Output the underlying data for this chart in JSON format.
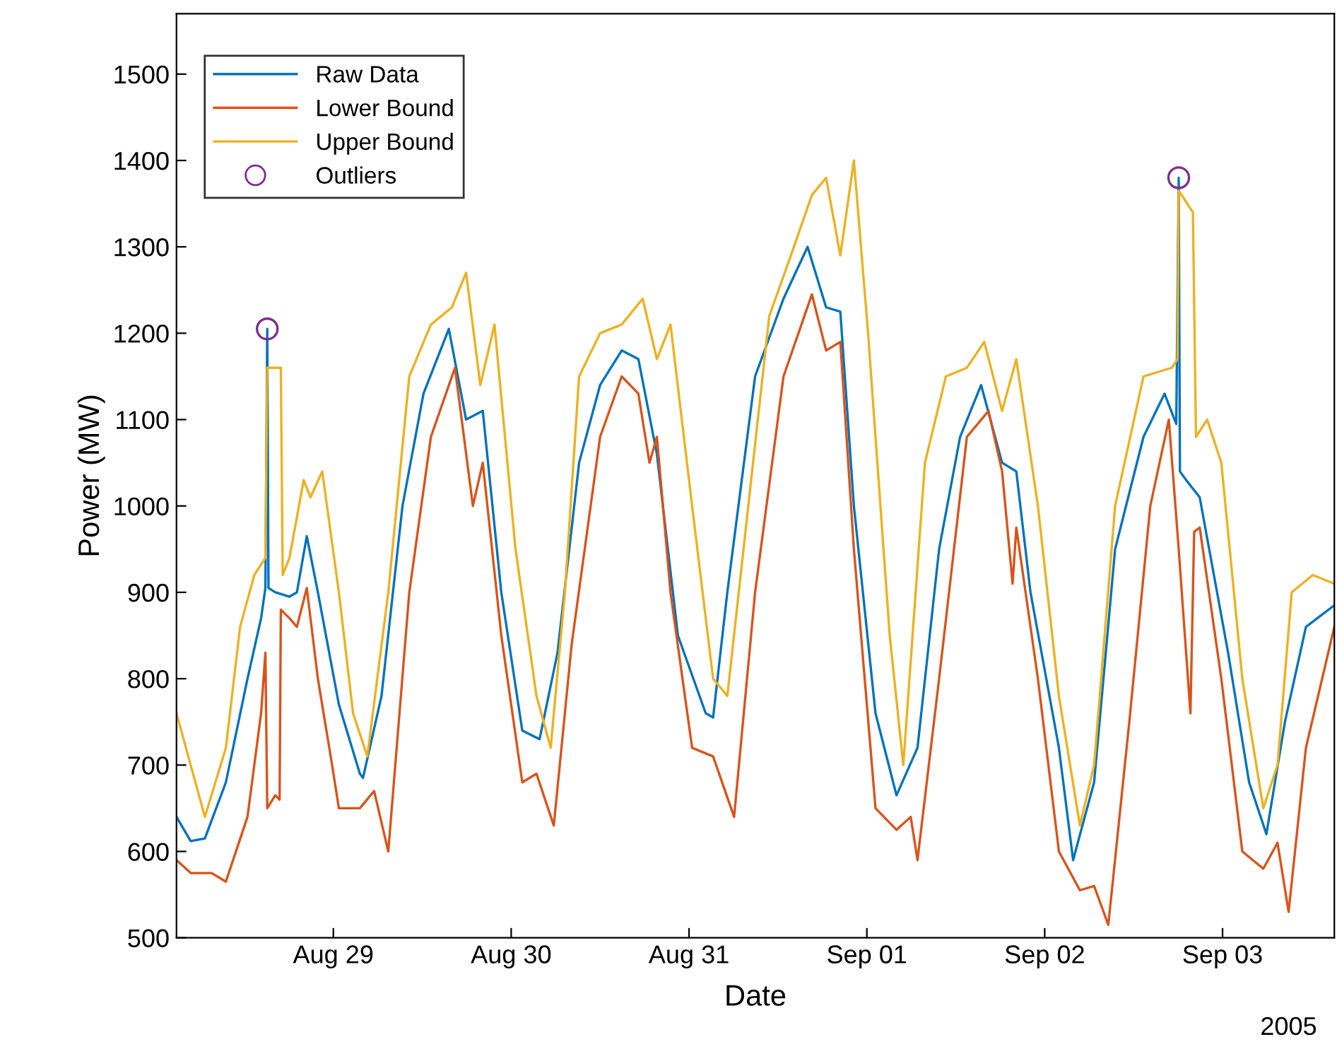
{
  "chart_data": {
    "type": "line",
    "xlabel": "Date",
    "ylabel": "Power (MW)",
    "annotations": [
      "2005"
    ],
    "xlim": [
      "2005-08-28T02:50",
      "2005-09-03T15:05"
    ],
    "xticks": [
      {
        "value": "2005-08-29",
        "label": "Aug 29"
      },
      {
        "value": "2005-08-30",
        "label": "Aug 30"
      },
      {
        "value": "2005-08-31",
        "label": "Aug 31"
      },
      {
        "value": "2005-09-01",
        "label": "Sep 01"
      },
      {
        "value": "2005-09-02",
        "label": "Sep 02"
      },
      {
        "value": "2005-09-03",
        "label": "Sep 03"
      }
    ],
    "ylim": [
      500,
      1570
    ],
    "yticks": [
      500,
      600,
      700,
      800,
      900,
      1000,
      1100,
      1200,
      1300,
      1400,
      1500
    ],
    "grid": false,
    "legend": "top left",
    "series": [
      {
        "name": "Raw Data",
        "color": "#0072bd",
        "x": [
          "2005-08-28T02:50",
          "2005-08-28T04:45",
          "2005-08-28T06:40",
          "2005-08-28T09:30",
          "2005-08-28T12:25",
          "2005-08-28T14:15",
          "2005-08-28T14:50",
          "2005-08-28T15:05",
          "2005-08-28T15:15",
          "2005-08-28T16:10",
          "2005-08-28T18:05",
          "2005-08-28T19:05",
          "2005-08-28T20:25",
          "2005-08-28T21:55",
          "2005-08-29T00:45",
          "2005-08-29T03:35",
          "2005-08-29T04:00",
          "2005-08-29T06:30",
          "2005-08-29T09:20",
          "2005-08-29T12:10",
          "2005-08-29T15:35",
          "2005-08-29T17:55",
          "2005-08-29T20:10",
          "2005-08-29T22:40",
          "2005-08-30T01:30",
          "2005-08-30T03:50",
          "2005-08-30T06:15",
          "2005-08-30T09:10",
          "2005-08-30T12:00",
          "2005-08-30T14:55",
          "2005-08-30T17:10",
          "2005-08-30T19:40",
          "2005-08-30T22:30",
          "2005-08-31T02:15",
          "2005-08-31T03:15",
          "2005-08-31T05:10",
          "2005-08-31T08:55",
          "2005-08-31T12:45",
          "2005-08-31T16:00",
          "2005-08-31T18:30",
          "2005-08-31T20:25",
          "2005-08-31T22:15",
          "2005-09-01T01:10",
          "2005-09-01T04:00",
          "2005-09-01T06:50",
          "2005-09-01T09:45",
          "2005-09-01T12:35",
          "2005-09-01T15:25",
          "2005-09-01T18:15",
          "2005-09-01T20:10",
          "2005-09-01T22:05",
          "2005-09-02T01:55",
          "2005-09-02T03:50",
          "2005-09-02T06:40",
          "2005-09-02T09:30",
          "2005-09-02T13:20",
          "2005-09-02T16:10",
          "2005-09-02T17:45",
          "2005-09-02T18:05",
          "2005-09-02T18:15",
          "2005-09-02T19:05",
          "2005-09-02T20:55",
          "2005-09-03T00:45",
          "2005-09-03T03:35",
          "2005-09-03T05:55",
          "2005-09-03T08:25",
          "2005-09-03T11:15",
          "2005-09-03T15:05"
        ],
        "values": [
          640,
          612,
          615,
          680,
          800,
          870,
          905,
          1205,
          905,
          900,
          895,
          900,
          965,
          900,
          770,
          690,
          685,
          780,
          1000,
          1130,
          1205,
          1100,
          1110,
          900,
          740,
          730,
          830,
          1050,
          1140,
          1180,
          1170,
          1060,
          850,
          760,
          755,
          900,
          1150,
          1240,
          1300,
          1230,
          1225,
          1000,
          760,
          665,
          720,
          950,
          1080,
          1140,
          1050,
          1040,
          900,
          720,
          590,
          680,
          950,
          1080,
          1130,
          1095,
          1380,
          1040,
          1030,
          1010,
          830,
          680,
          620,
          750,
          860,
          885
        ]
      },
      {
        "name": "Lower Bound",
        "color": "#d95319",
        "x": [
          "2005-08-28T02:50",
          "2005-08-28T04:45",
          "2005-08-28T07:35",
          "2005-08-28T09:30",
          "2005-08-28T12:25",
          "2005-08-28T14:15",
          "2005-08-28T14:50",
          "2005-08-28T15:05",
          "2005-08-28T16:10",
          "2005-08-28T16:45",
          "2005-08-28T16:55",
          "2005-08-28T18:05",
          "2005-08-28T19:05",
          "2005-08-28T20:25",
          "2005-08-28T21:55",
          "2005-08-28T23:50",
          "2005-08-29T00:45",
          "2005-08-29T03:35",
          "2005-08-29T05:30",
          "2005-08-29T07:25",
          "2005-08-29T10:15",
          "2005-08-29T13:10",
          "2005-08-29T16:25",
          "2005-08-29T18:50",
          "2005-08-29T20:10",
          "2005-08-29T22:40",
          "2005-08-30T01:30",
          "2005-08-30T03:25",
          "2005-08-30T05:45",
          "2005-08-30T08:10",
          "2005-08-30T12:00",
          "2005-08-30T14:55",
          "2005-08-30T17:10",
          "2005-08-30T18:40",
          "2005-08-30T19:40",
          "2005-08-30T21:30",
          "2005-08-31T00:25",
          "2005-08-31T03:15",
          "2005-08-31T06:05",
          "2005-08-31T08:55",
          "2005-08-31T12:45",
          "2005-08-31T16:35",
          "2005-08-31T18:30",
          "2005-08-31T20:25",
          "2005-08-31T22:15",
          "2005-09-01T01:10",
          "2005-09-01T04:00",
          "2005-09-01T05:55",
          "2005-09-01T06:50",
          "2005-09-01T09:45",
          "2005-09-01T13:30",
          "2005-09-01T16:25",
          "2005-09-01T18:15",
          "2005-09-01T19:40",
          "2005-09-01T20:10",
          "2005-09-01T23:05",
          "2005-09-02T01:55",
          "2005-09-02T04:45",
          "2005-09-02T06:40",
          "2005-09-02T08:35",
          "2005-09-02T11:25",
          "2005-09-02T14:15",
          "2005-09-02T16:45",
          "2005-09-02T18:05",
          "2005-09-02T19:40",
          "2005-09-02T20:10",
          "2005-09-02T20:55",
          "2005-09-02T23:50",
          "2005-09-03T02:40",
          "2005-09-03T05:30",
          "2005-09-03T07:25",
          "2005-09-03T08:55",
          "2005-09-03T11:15",
          "2005-09-03T15:05"
        ],
        "values": [
          590,
          575,
          575,
          565,
          640,
          760,
          830,
          650,
          665,
          660,
          880,
          870,
          860,
          905,
          800,
          700,
          650,
          650,
          670,
          600,
          900,
          1080,
          1160,
          1000,
          1050,
          850,
          680,
          690,
          630,
          840,
          1080,
          1150,
          1130,
          1050,
          1080,
          900,
          720,
          710,
          640,
          900,
          1150,
          1245,
          1180,
          1190,
          950,
          650,
          625,
          640,
          590,
          800,
          1080,
          1110,
          1040,
          910,
          975,
          800,
          600,
          555,
          560,
          515,
          750,
          1000,
          1100,
          950,
          760,
          970,
          975,
          800,
          600,
          580,
          610,
          530,
          720,
          860
        ]
      },
      {
        "name": "Upper Bound",
        "color": "#edb120",
        "x": [
          "2005-08-28T02:50",
          "2005-08-28T04:45",
          "2005-08-28T06:40",
          "2005-08-28T09:30",
          "2005-08-28T11:25",
          "2005-08-28T13:20",
          "2005-08-28T14:50",
          "2005-08-28T15:05",
          "2005-08-28T16:55",
          "2005-08-28T17:10",
          "2005-08-28T18:05",
          "2005-08-28T20:00",
          "2005-08-28T20:55",
          "2005-08-28T22:30",
          "2005-08-29T00:45",
          "2005-08-29T02:40",
          "2005-08-29T04:35",
          "2005-08-29T07:25",
          "2005-08-29T10:15",
          "2005-08-29T13:10",
          "2005-08-29T16:00",
          "2005-08-29T17:55",
          "2005-08-29T19:50",
          "2005-08-29T21:45",
          "2005-08-30T00:35",
          "2005-08-30T03:25",
          "2005-08-30T05:20",
          "2005-08-30T07:15",
          "2005-08-30T09:10",
          "2005-08-30T12:00",
          "2005-08-30T14:55",
          "2005-08-30T17:45",
          "2005-08-30T19:40",
          "2005-08-30T21:30",
          "2005-08-31T00:25",
          "2005-08-31T03:15",
          "2005-08-31T05:10",
          "2005-08-31T08:00",
          "2005-08-31T10:50",
          "2005-08-31T13:45",
          "2005-08-31T16:35",
          "2005-08-31T18:30",
          "2005-08-31T20:25",
          "2005-08-31T22:15",
          "2005-09-01T00:10",
          "2005-09-01T03:05",
          "2005-09-01T04:55",
          "2005-09-01T07:50",
          "2005-09-01T10:40",
          "2005-09-01T13:30",
          "2005-09-01T15:50",
          "2005-09-01T18:15",
          "2005-09-01T20:10",
          "2005-09-01T23:05",
          "2005-09-02T01:55",
          "2005-09-02T04:45",
          "2005-09-02T06:40",
          "2005-09-02T09:30",
          "2005-09-02T13:20",
          "2005-09-02T17:10",
          "2005-09-02T17:55",
          "2005-09-02T18:05",
          "2005-09-02T20:00",
          "2005-09-02T20:25",
          "2005-09-02T21:55",
          "2005-09-02T23:50",
          "2005-09-03T02:40",
          "2005-09-03T05:30",
          "2005-09-03T07:25",
          "2005-09-03T09:20",
          "2005-09-03T12:10",
          "2005-09-03T15:05"
        ],
        "values": [
          760,
          700,
          640,
          720,
          860,
          920,
          940,
          1160,
          1160,
          920,
          940,
          1030,
          1010,
          1040,
          900,
          760,
          710,
          900,
          1150,
          1210,
          1230,
          1270,
          1140,
          1210,
          950,
          780,
          720,
          900,
          1150,
          1200,
          1210,
          1240,
          1170,
          1210,
          1000,
          800,
          780,
          1000,
          1220,
          1290,
          1360,
          1380,
          1290,
          1400,
          1200,
          850,
          700,
          1050,
          1150,
          1160,
          1190,
          1110,
          1170,
          1000,
          780,
          630,
          700,
          1000,
          1150,
          1160,
          1170,
          1365,
          1340,
          1080,
          1100,
          1050,
          800,
          650,
          700,
          900,
          920,
          910
        ]
      },
      {
        "name": "Outliers",
        "type": "scatter",
        "marker": "circle",
        "color": "#7e2f8e",
        "x": [
          "2005-08-28T15:05",
          "2005-09-02T18:05"
        ],
        "values": [
          1205,
          1380
        ]
      }
    ]
  }
}
